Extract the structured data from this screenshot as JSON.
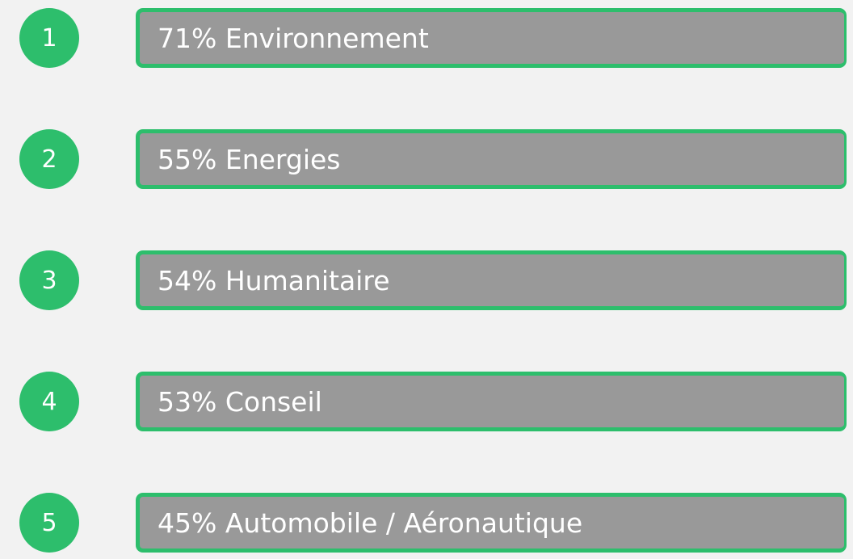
{
  "items": [
    {
      "rank": 1,
      "text": "71% Environnement"
    },
    {
      "rank": 2,
      "text": "55% Energies"
    },
    {
      "rank": 3,
      "text": "54% Humanitaire"
    },
    {
      "rank": 4,
      "text": "53% Conseil"
    },
    {
      "rank": 5,
      "text": "45% Automobile / Aéronautique"
    }
  ]
}
